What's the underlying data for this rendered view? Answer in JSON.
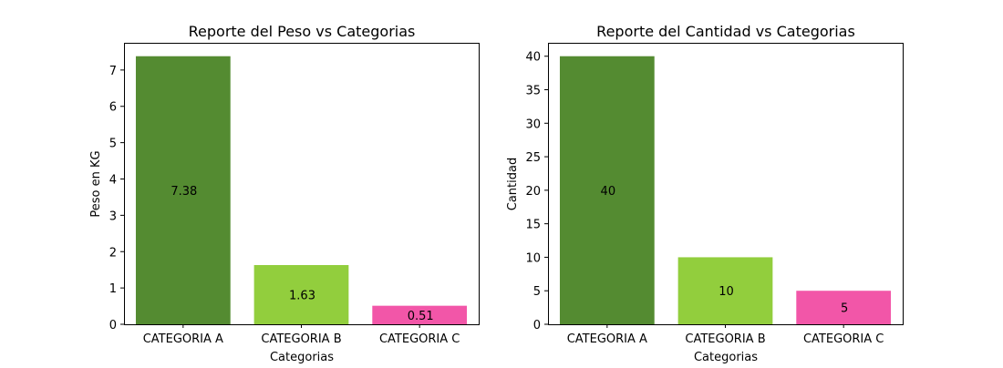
{
  "chart_data": [
    {
      "type": "bar",
      "title": "Reporte del Peso vs Categorias",
      "xlabel": "Categorias",
      "ylabel": "Peso en KG",
      "categories": [
        "CATEGORIA A",
        "CATEGORIA B",
        "CATEGORIA C"
      ],
      "values": [
        7.38,
        1.63,
        0.51
      ],
      "value_labels": [
        "7.38",
        "1.63",
        "0.51"
      ],
      "colors": [
        "#548b31",
        "#92ce3d",
        "#f256a8"
      ],
      "ylim": [
        0,
        7.749
      ],
      "yticks": [
        0,
        1,
        2,
        3,
        4,
        5,
        6,
        7
      ],
      "grid": false
    },
    {
      "type": "bar",
      "title": "Reporte del Cantidad vs Categorias",
      "xlabel": "Categorias",
      "ylabel": "Cantidad",
      "categories": [
        "CATEGORIA A",
        "CATEGORIA B",
        "CATEGORIA C"
      ],
      "values": [
        40,
        10,
        5
      ],
      "value_labels": [
        "40",
        "10",
        "5"
      ],
      "colors": [
        "#548b31",
        "#92ce3d",
        "#f256a8"
      ],
      "ylim": [
        0,
        42
      ],
      "yticks": [
        0,
        5,
        10,
        15,
        20,
        25,
        30,
        35,
        40
      ],
      "grid": false
    }
  ]
}
